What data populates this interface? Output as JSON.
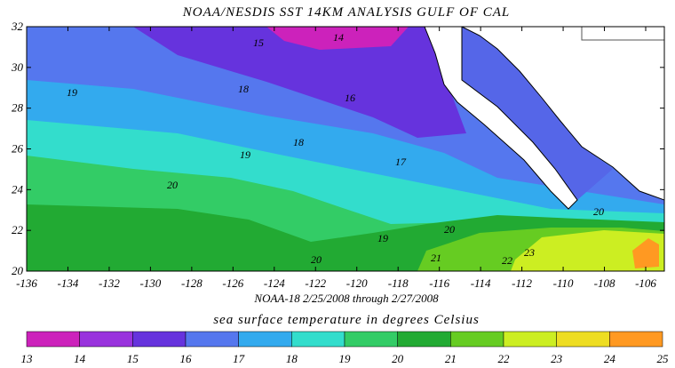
{
  "title": "NOAA/NESDIS SST 14KM ANALYSIS GULF OF CAL",
  "map": {
    "lat_ticks": [
      20,
      22,
      24,
      26,
      28,
      30,
      32
    ],
    "lon_ticks": [
      -136,
      -134,
      -132,
      -130,
      -128,
      -126,
      -124,
      -122,
      -120,
      -118,
      -116,
      -114,
      -112,
      -110,
      -108,
      -106
    ],
    "contour_labels": [
      "15",
      "14",
      "19",
      "18",
      "16",
      "18",
      "19",
      "20",
      "17",
      "20",
      "19",
      "20",
      "20",
      "21",
      "22",
      "23"
    ]
  },
  "caption": "NOAA-18  2/25/2008 through 2/27/2008",
  "legend": {
    "title": "sea surface temperature in degrees Celsius",
    "ticks": [
      13,
      14,
      15,
      16,
      17,
      18,
      19,
      20,
      21,
      22,
      23,
      24,
      25
    ],
    "colors": [
      "#cc22bb",
      "#9933dd",
      "#6633dd",
      "#5577ee",
      "#33aaee",
      "#33ddcc",
      "#33cc66",
      "#22aa33",
      "#66cc22",
      "#ccee22",
      "#eedd22",
      "#ff9922"
    ]
  }
}
